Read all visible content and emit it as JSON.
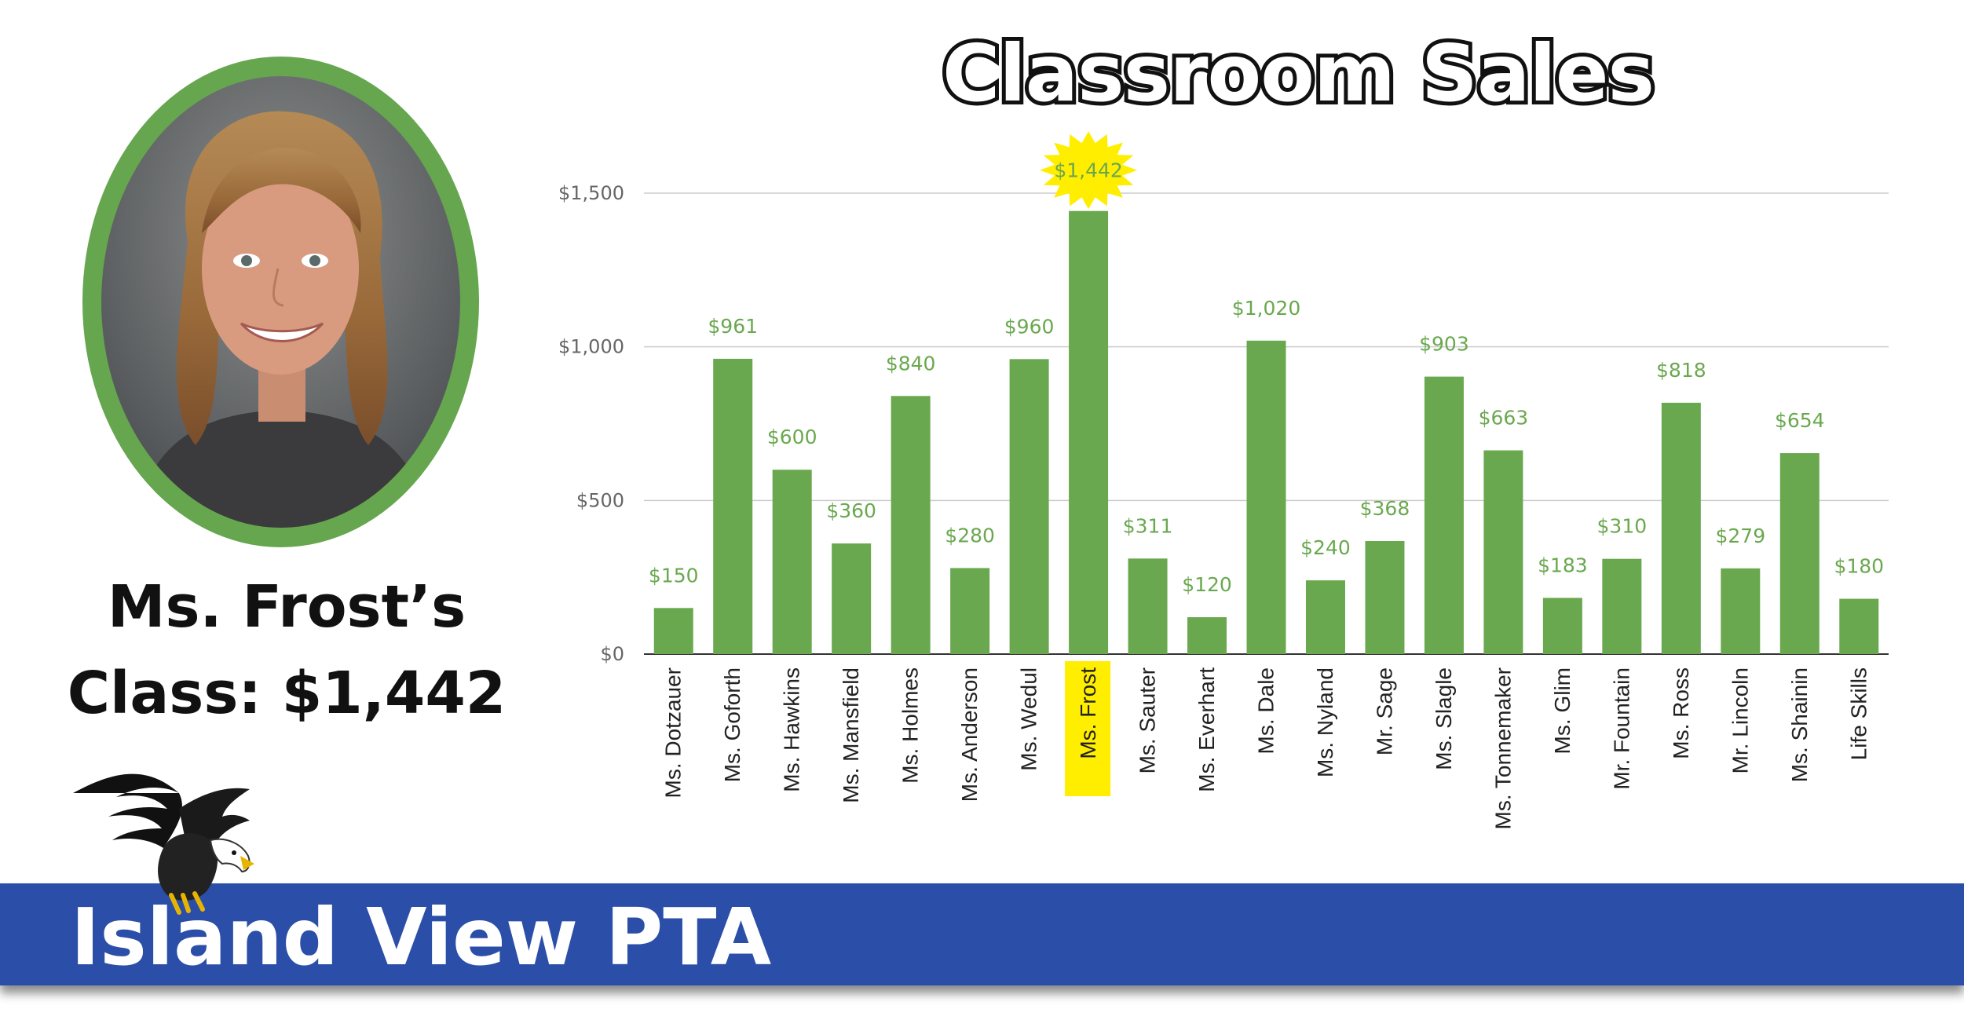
{
  "featured": {
    "caption_line1": "Ms. Frost’s",
    "caption_line2": "Class: $1,442"
  },
  "banner": {
    "text": "Island View PTA"
  },
  "colors": {
    "bar": "#6aa84f",
    "value_label": "#6aa84f",
    "highlight": "#ffee00",
    "banner": "#2b4ea8",
    "gridline": "#cccccc",
    "axis_text": "#666666"
  },
  "chart_data": {
    "type": "bar",
    "title": "Classroom Sales",
    "categories": [
      "Ms. Dotzauer",
      "Ms. Goforth",
      "Ms. Hawkins",
      "Ms. Mansfield",
      "Ms. Holmes",
      "Ms. Anderson",
      "Ms. Wedul",
      "Ms. Frost",
      "Ms. Sauter",
      "Ms. Everhart",
      "Ms. Dale",
      "Ms. Nyland",
      "Mr. Sage",
      "Ms. Slagle",
      "Ms. Tonnemaker",
      "Ms. Glim",
      "Mr. Fountain",
      "Ms. Ross",
      "Mr. Lincoln",
      "Ms. Shainin",
      "Life Skills"
    ],
    "values": [
      150,
      961,
      600,
      360,
      840,
      280,
      960,
      1442,
      311,
      120,
      1020,
      240,
      368,
      903,
      663,
      183,
      310,
      818,
      279,
      654,
      180
    ],
    "value_labels": [
      "$150",
      "$961",
      "$600",
      "$360",
      "$840",
      "$280",
      "$960",
      "$1,442",
      "$311",
      "$120",
      "$1,020",
      "$240",
      "$368",
      "$903",
      "$663",
      "$183",
      "$310",
      "$818",
      "$279",
      "$654",
      "$180"
    ],
    "highlighted_category": "Ms. Frost",
    "ylim": [
      0,
      1500
    ],
    "yticks": [
      0,
      500,
      1000,
      1500
    ],
    "ytick_labels": [
      "$0",
      "$500",
      "$1,000",
      "$1,500"
    ],
    "xlabel": "",
    "ylabel": "",
    "grid": true,
    "legend": "none"
  }
}
